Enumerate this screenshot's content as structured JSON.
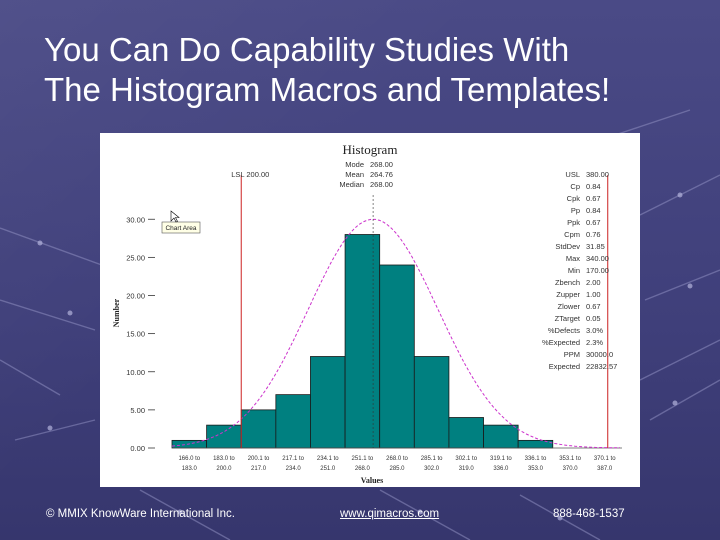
{
  "slide": {
    "title_line1": "You Can Do Capability Studies With",
    "title_line2": "The Histogram Macros and Templates!"
  },
  "footer": {
    "copyright": "© MMIX KnowWare International Inc.",
    "website": "www.qimacros.com",
    "phone": "888-468-1537"
  },
  "colors": {
    "bar": "#008080",
    "curve": "#cc33cc",
    "limit_line": "#cc2222"
  },
  "chart_data": {
    "type": "bar",
    "title": "Histogram",
    "xlabel": "Values",
    "ylabel": "Number",
    "ylim": [
      0,
      40
    ],
    "yticks": [
      "0.00",
      "5.00",
      "10.00",
      "15.00",
      "20.00",
      "25.00",
      "30.00"
    ],
    "categories": [
      [
        "166.0 to",
        "183.0"
      ],
      [
        "183.0 to",
        "200.0"
      ],
      [
        "200.1 to",
        "217.0"
      ],
      [
        "217.1 to",
        "234.0"
      ],
      [
        "234.1 to",
        "251.0"
      ],
      [
        "251.1 to",
        "268.0"
      ],
      [
        "268.0 to",
        "285.0"
      ],
      [
        "285.1 to",
        "302.0"
      ],
      [
        "302.1 to",
        "319.0"
      ],
      [
        "319.1 to",
        "336.0"
      ],
      [
        "336.1 to",
        "353.0"
      ],
      [
        "353.1 to",
        "370.0"
      ],
      [
        "370.1 to",
        "387.0"
      ]
    ],
    "values": [
      1,
      3,
      5,
      7,
      12,
      28,
      24,
      12,
      4,
      3,
      1,
      0,
      0
    ],
    "lsl_label": "LSL 200.00",
    "lsl_value": 200,
    "usl_value": 380,
    "mean_value": 264.76,
    "x_range": [
      166,
      387
    ],
    "center_stats": [
      {
        "label": "Mode",
        "value": "268.00"
      },
      {
        "label": "Mean",
        "value": "264.76"
      },
      {
        "label": "Median",
        "value": "268.00"
      }
    ],
    "right_stats": [
      {
        "label": "USL",
        "value": "380.00"
      },
      {
        "label": "Cp",
        "value": "0.84"
      },
      {
        "label": "Cpk",
        "value": "0.67"
      },
      {
        "label": "Pp",
        "value": "0.84"
      },
      {
        "label": "Ppk",
        "value": "0.67"
      },
      {
        "label": "Cpm",
        "value": "0.76"
      },
      {
        "label": "StdDev",
        "value": "31.85"
      },
      {
        "label": "Max",
        "value": "340.00"
      },
      {
        "label": "Min",
        "value": "170.00"
      },
      {
        "label": "Zbench",
        "value": "2.00"
      },
      {
        "label": "Zupper",
        "value": "1.00"
      },
      {
        "label": "Zlower",
        "value": "0.67"
      },
      {
        "label": "ZTarget",
        "value": "0.05"
      },
      {
        "label": "%Defects",
        "value": "3.0%"
      },
      {
        "label": "%Expected",
        "value": "2.3%"
      },
      {
        "label": "PPM",
        "value": "30000.0"
      },
      {
        "label": "Expected",
        "value": "22832.57"
      }
    ],
    "tooltip": "Chart Area"
  }
}
